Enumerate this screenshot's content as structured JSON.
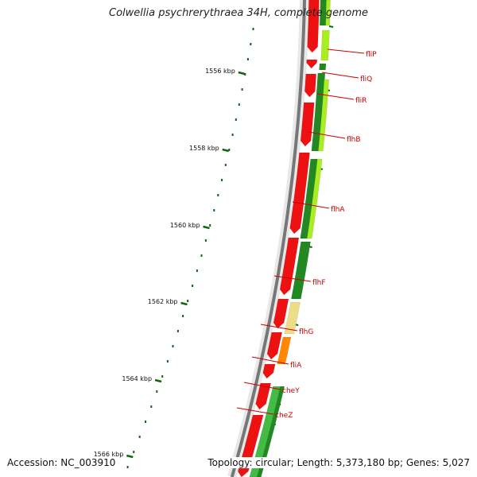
{
  "title": "Colwellia psychrerythraea 34H, complete genome",
  "footer": {
    "accession": "Accession: NC_003910",
    "summary": "Topology: circular; Length: 5,373,180 bp; Genes: 5,027"
  },
  "colors": {
    "forward_cds": "#ee1111",
    "reverse_cds_dark": "#228822",
    "reverse_cds_light": "#aaee22",
    "reverse_cds_pale": "#eedd88",
    "reverse_cds_orange": "#ff8800",
    "reverse_cds_green": "#44bb44",
    "backbone": "#777777",
    "ticks": "#116611",
    "labels": "#cc0000"
  },
  "ruler": [
    {
      "label": "1556 kbp"
    },
    {
      "label": "1558 kbp"
    },
    {
      "label": "1560 kbp"
    },
    {
      "label": "1562 kbp"
    },
    {
      "label": "1564 kbp"
    },
    {
      "label": "1566 kbp"
    }
  ],
  "genes": [
    {
      "name": "fliP"
    },
    {
      "name": "fliQ"
    },
    {
      "name": "fliR"
    },
    {
      "name": "flhB"
    },
    {
      "name": "flhA"
    },
    {
      "name": "flhF"
    },
    {
      "name": "flhG"
    },
    {
      "name": "fliA"
    },
    {
      "name": "cheY"
    },
    {
      "name": "cheZ"
    }
  ]
}
